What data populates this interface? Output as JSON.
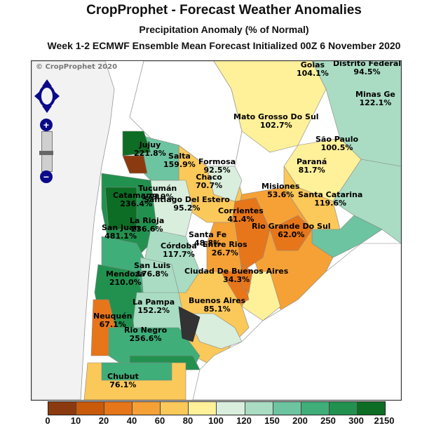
{
  "header": {
    "title": "CropProphet - Forecast Weather Anomalies",
    "subtitle": "Precipitation Anomaly (% of Normal)",
    "caption": "Week 1-2 ECMWF Ensemble Mean Forecast Initialized 00Z 6 November 2020"
  },
  "map": {
    "copyright": "© CropProphet 2020",
    "labels": {
      "goias": {
        "name": "Goias",
        "value": "104.1%"
      },
      "distrito_federal": {
        "name": "Distrito Federal",
        "value": "94.5%"
      },
      "minas_gerais": {
        "name": "Minas Ge",
        "value": "122.1%"
      },
      "mato_grosso_do_sul": {
        "name": "Mato Grosso Do Sul",
        "value": "102.7%"
      },
      "sao_paulo": {
        "name": "São Paulo",
        "value": "100.5%"
      },
      "parana": {
        "name": "Paraná",
        "value": "81.7%"
      },
      "santa_catarina": {
        "name": "Santa Catarina",
        "value": "119.6%"
      },
      "misiones": {
        "name": "Misiones",
        "value": "53.6%"
      },
      "rio_grande_do_sul": {
        "name": "Rio Grande Do Sul",
        "value": "62.0%"
      },
      "corrientes": {
        "name": "Corrientes",
        "value": "41.4%"
      },
      "jujuy": {
        "name": "Jujuy",
        "value": "221.8%"
      },
      "salta": {
        "name": "Salta",
        "value": "159.9%"
      },
      "formosa": {
        "name": "Formosa",
        "value": "92.5%"
      },
      "chaco": {
        "name": "Chaco",
        "value": "70.7%"
      },
      "tucuman": {
        "name": "Tucumán",
        "value": "179.9%"
      },
      "catamarca": {
        "name": "Catamarca",
        "value": "236.4%"
      },
      "santiago_del_estero": {
        "name": "Santiago Del Estero",
        "value": "95.2%"
      },
      "la_rioja": {
        "name": "La Rioja",
        "value": "236.6%"
      },
      "san_juan": {
        "name": "San Juan",
        "value": "481.1%"
      },
      "santa_fe": {
        "name": "Santa Fe",
        "value": "48.8%"
      },
      "entre_rios": {
        "name": "Entre Rios",
        "value": "26.7%"
      },
      "cordoba": {
        "name": "Córdoba",
        "value": "117.7%"
      },
      "san_luis": {
        "name": "San Luis",
        "value": "176.8%"
      },
      "mendoza": {
        "name": "Mendoza",
        "value": "210.0%"
      },
      "ciudad_bsas": {
        "name": "Ciudad De Buenos Aires",
        "value": "34.3%"
      },
      "la_pampa": {
        "name": "La Pampa",
        "value": "152.2%"
      },
      "buenos_aires": {
        "name": "Buenos Aires",
        "value": "85.1%"
      },
      "neuquen": {
        "name": "Neuquén",
        "value": "67.1%"
      },
      "rio_negro": {
        "name": "Rio Negro",
        "value": "256.6%"
      },
      "chubut": {
        "name": "Chubut",
        "value": "76.1%"
      }
    }
  },
  "legend": {
    "colors": [
      "#8b3a0f",
      "#c85a0a",
      "#e7761a",
      "#f5a136",
      "#fbc85a",
      "#fff09a",
      "#d9eedc",
      "#a9dcc3",
      "#6dc4a0",
      "#3fae79",
      "#22914f",
      "#0d6d24"
    ],
    "ticks": [
      "0",
      "10",
      "20",
      "40",
      "60",
      "80",
      "100",
      "120",
      "150",
      "200",
      "250",
      "300",
      "2150"
    ]
  },
  "nav": {
    "pan_icon": "pan-arrows-icon",
    "zoom_in": "+",
    "zoom_out": "−"
  }
}
